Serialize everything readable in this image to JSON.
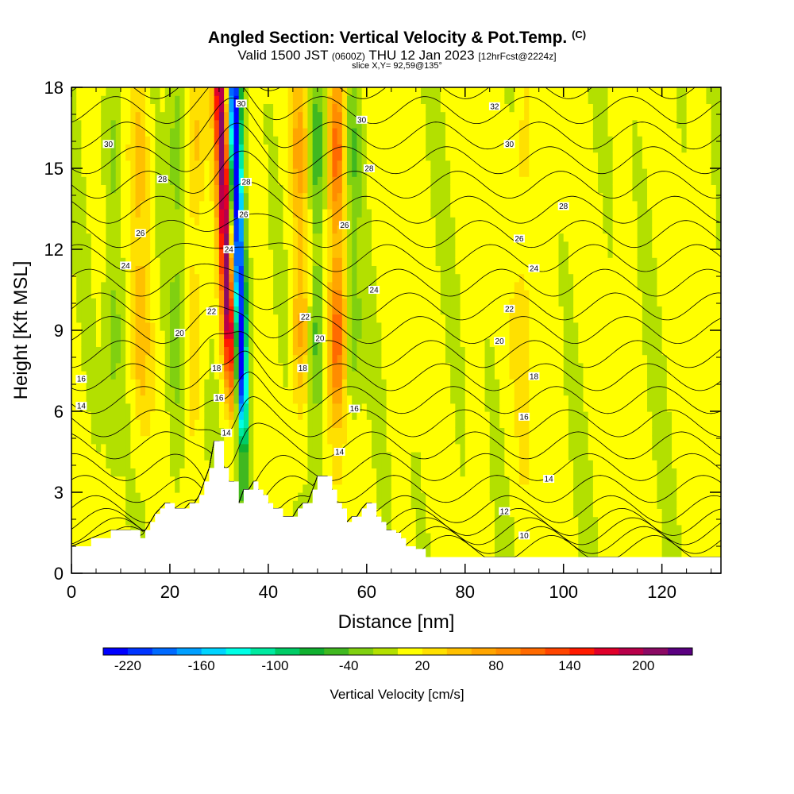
{
  "header": {
    "title": "Angled Section: Vertical Velocity & Pot.Temp.",
    "copyright": "(C)",
    "valid_prefix": "Valid 1500 JST",
    "utc": "(0600Z)",
    "valid_date": "THU 12 Jan 2023",
    "forecast": "[12hrFcst@2224z]",
    "slice": "slice X,Y= 92,59@135°"
  },
  "chart_data": {
    "type": "heatmap",
    "xlabel": "Distance [nm]",
    "ylabel": "Height [Kft MSL]",
    "xlim": [
      0,
      132
    ],
    "ylim": [
      0,
      18
    ],
    "x_ticks": [
      "0",
      "20",
      "40",
      "60",
      "80",
      "100",
      "120"
    ],
    "y_ticks": [
      "0",
      "3",
      "6",
      "9",
      "12",
      "15",
      "18"
    ],
    "colorbar": {
      "label": "Vertical Velocity [cm/s]",
      "tick_labels": [
        "-220",
        "-160",
        "-100",
        "-40",
        "20",
        "80",
        "140",
        "200"
      ],
      "levels": [
        -240,
        -220,
        -200,
        -180,
        -160,
        -140,
        -120,
        -100,
        -80,
        -60,
        -40,
        -20,
        0,
        20,
        40,
        60,
        80,
        100,
        120,
        140,
        160,
        180,
        200,
        220,
        240
      ],
      "colors": [
        "#0000ff",
        "#0035ff",
        "#006aff",
        "#009fff",
        "#00d4ff",
        "#00ffe6",
        "#00eaa0",
        "#00cc66",
        "#10b030",
        "#40b820",
        "#80d010",
        "#b3e000",
        "#ffff00",
        "#ffe000",
        "#ffc000",
        "#ffa500",
        "#ff8c00",
        "#ff6a00",
        "#ff4500",
        "#ff1a00",
        "#e0002a",
        "#b8004a",
        "#8b0a64",
        "#5a0080"
      ]
    },
    "background_value_cm_s": 5,
    "updraft_columns": [
      {
        "x": 31.8,
        "peak_cm_s": 200
      },
      {
        "x": 46.5,
        "peak_cm_s": 60
      },
      {
        "x": 54.0,
        "peak_cm_s": 110
      },
      {
        "x": 14.0,
        "peak_cm_s": 45
      },
      {
        "x": 25.0,
        "peak_cm_s": 40
      },
      {
        "x": 92.0,
        "peak_cm_s": 30
      }
    ],
    "downdraft_columns": [
      {
        "x": 34.2,
        "peak_cm_s": -240
      },
      {
        "x": 49.8,
        "peak_cm_s": -60
      },
      {
        "x": 57.0,
        "peak_cm_s": -45
      },
      {
        "x": 21.5,
        "peak_cm_s": -40
      },
      {
        "x": 8.5,
        "peak_cm_s": -30
      }
    ],
    "terrain": {
      "x": [
        0,
        4,
        8,
        12,
        14,
        15,
        16,
        17,
        18,
        19,
        20,
        21,
        22,
        23,
        24,
        25,
        26,
        27,
        28,
        29,
        30,
        31,
        32,
        33,
        34,
        35,
        36,
        37,
        38,
        39,
        40,
        41,
        42,
        43,
        44,
        45,
        46,
        47,
        48,
        49,
        50,
        51,
        52,
        53,
        54,
        55,
        56,
        57,
        58,
        59,
        60,
        61,
        62,
        63,
        64,
        65,
        66,
        67,
        68,
        70,
        72,
        132
      ],
      "height_kft": [
        1.0,
        1.3,
        1.6,
        1.6,
        1.3,
        1.6,
        1.9,
        2.2,
        2.4,
        2.6,
        2.6,
        2.4,
        2.4,
        2.4,
        2.6,
        2.6,
        2.9,
        3.4,
        3.9,
        4.9,
        4.9,
        3.9,
        3.4,
        3.4,
        2.6,
        3.1,
        3.1,
        3.4,
        3.1,
        2.9,
        2.6,
        2.4,
        2.4,
        2.1,
        2.1,
        2.1,
        2.4,
        2.6,
        2.6,
        3.1,
        3.6,
        3.6,
        3.6,
        3.1,
        2.6,
        2.4,
        1.9,
        2.1,
        2.1,
        2.4,
        2.6,
        2.6,
        2.1,
        1.9,
        1.6,
        1.6,
        1.5,
        1.3,
        1.0,
        0.9,
        0.6,
        0.6
      ]
    },
    "isentropes": {
      "levels": [
        10,
        12,
        14,
        16,
        18,
        20,
        22,
        24,
        26,
        28,
        30,
        32
      ],
      "labels": [
        {
          "text": "10",
          "x": 92,
          "y": 1.4
        },
        {
          "text": "12",
          "x": 88,
          "y": 2.3
        },
        {
          "text": "14",
          "x": 97,
          "y": 3.5
        },
        {
          "text": "16",
          "x": 92,
          "y": 5.8
        },
        {
          "text": "18",
          "x": 94,
          "y": 7.3
        },
        {
          "text": "20",
          "x": 87,
          "y": 8.6
        },
        {
          "text": "22",
          "x": 89,
          "y": 9.8
        },
        {
          "text": "24",
          "x": 94,
          "y": 11.3
        },
        {
          "text": "26",
          "x": 91,
          "y": 12.4
        },
        {
          "text": "28",
          "x": 100,
          "y": 13.6
        },
        {
          "text": "30",
          "x": 89,
          "y": 15.9
        },
        {
          "text": "32",
          "x": 86,
          "y": 17.3
        },
        {
          "text": "30",
          "x": 7.5,
          "y": 15.9
        },
        {
          "text": "28",
          "x": 18.5,
          "y": 14.6
        },
        {
          "text": "26",
          "x": 14,
          "y": 12.6
        },
        {
          "text": "24",
          "x": 11,
          "y": 11.4
        },
        {
          "text": "20",
          "x": 22,
          "y": 8.9
        },
        {
          "text": "16",
          "x": 2,
          "y": 7.2
        },
        {
          "text": "14",
          "x": 2,
          "y": 6.2
        },
        {
          "text": "30",
          "x": 34.5,
          "y": 17.4
        },
        {
          "text": "28",
          "x": 35.5,
          "y": 14.5
        },
        {
          "text": "26",
          "x": 35,
          "y": 13.3
        },
        {
          "text": "24",
          "x": 32,
          "y": 12.0
        },
        {
          "text": "22",
          "x": 28.5,
          "y": 9.7
        },
        {
          "text": "18",
          "x": 29.5,
          "y": 7.6
        },
        {
          "text": "16",
          "x": 30,
          "y": 6.5
        },
        {
          "text": "14",
          "x": 31.5,
          "y": 5.2
        },
        {
          "text": "22",
          "x": 47.5,
          "y": 9.5
        },
        {
          "text": "20",
          "x": 50.5,
          "y": 8.7
        },
        {
          "text": "18",
          "x": 47,
          "y": 7.6
        },
        {
          "text": "30",
          "x": 59,
          "y": 16.8
        },
        {
          "text": "28",
          "x": 60.5,
          "y": 15.0
        },
        {
          "text": "26",
          "x": 55.5,
          "y": 12.9
        },
        {
          "text": "24",
          "x": 61.5,
          "y": 10.5
        },
        {
          "text": "16",
          "x": 57.5,
          "y": 6.1
        },
        {
          "text": "14",
          "x": 54.5,
          "y": 4.5
        }
      ]
    }
  }
}
